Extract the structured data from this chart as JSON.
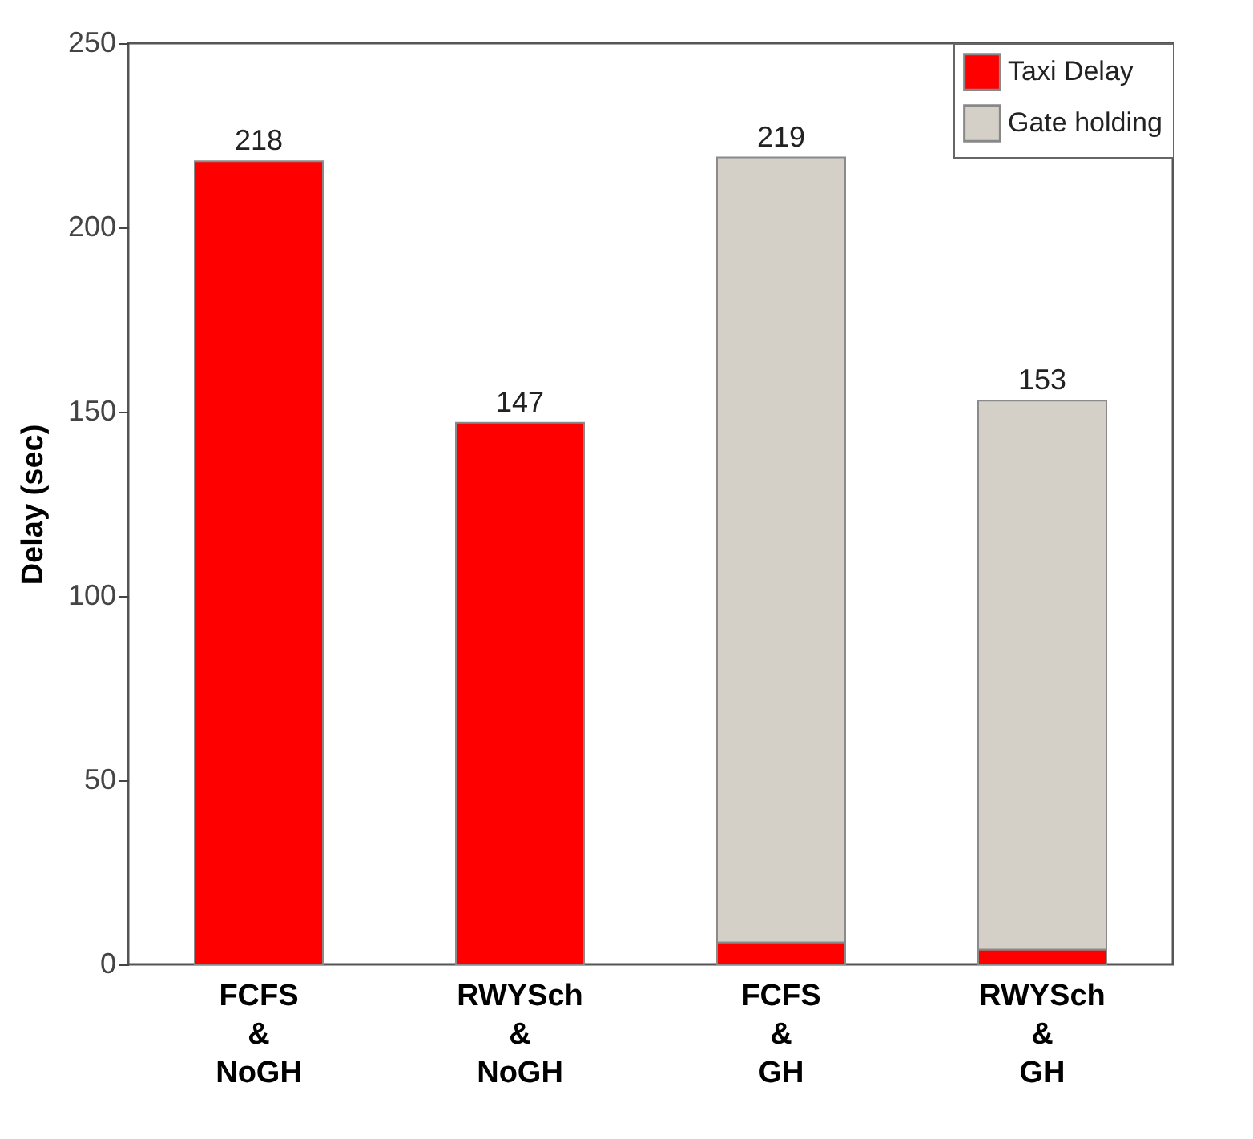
{
  "chart_data": {
    "type": "bar",
    "ylabel": "Delay (sec)",
    "categories": [
      "FCFS\n&\nNoGH",
      "RWYSch\n&\nNoGH",
      "FCFS\n&\nGH",
      "RWYSch\n&\nGH"
    ],
    "series": [
      {
        "name": "Taxi Delay",
        "color": "#ff0000",
        "values": [
          218,
          147,
          6,
          4
        ]
      },
      {
        "name": "Gate holding",
        "color": "#d4d0c8",
        "values": [
          null,
          null,
          213,
          149
        ]
      }
    ],
    "stacked": true,
    "totals": [
      "218",
      "147",
      "219",
      "153"
    ],
    "ylim": [
      0,
      250
    ],
    "yticks": [
      0,
      50,
      100,
      150,
      200,
      250
    ],
    "grid": false,
    "legend": "top right"
  }
}
